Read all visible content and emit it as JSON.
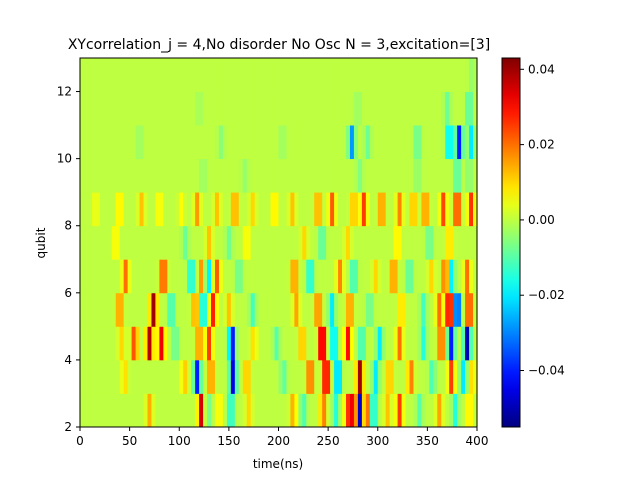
{
  "chart_data": {
    "type": "heatmap",
    "title": "XYcorrelation_j = 4,No disorder No Osc N =  3,excitation=[3]",
    "xlabel": "time(ns)",
    "ylabel": "qubit",
    "xlim": [
      0,
      400
    ],
    "ylim": [
      2,
      13
    ],
    "x_ticks": [
      0,
      50,
      100,
      150,
      200,
      250,
      300,
      350,
      400
    ],
    "y_ticks": [
      2,
      4,
      6,
      8,
      10,
      12
    ],
    "colorbar": {
      "colormap": "jet",
      "range": [
        -0.055,
        0.043
      ],
      "ticks": [
        0.04,
        0.02,
        0.0,
        -0.02,
        -0.04
      ],
      "tick_labels": [
        "0.04",
        "0.02",
        "0.00",
        "−0.02",
        "−0.04"
      ]
    },
    "x_step": 4,
    "rows": [
      {
        "qubit": 2,
        "events": [
          [
            70,
            0.014
          ],
          [
            122,
            0.035
          ],
          [
            128,
            -0.01
          ],
          [
            140,
            0.008
          ],
          [
            152,
            -0.018
          ],
          [
            170,
            0.01
          ],
          [
            215,
            0.015
          ],
          [
            225,
            -0.012
          ],
          [
            245,
            0.02
          ],
          [
            258,
            -0.015
          ],
          [
            270,
            0.025
          ],
          [
            276,
            0.04
          ],
          [
            282,
            -0.05
          ],
          [
            288,
            0.03
          ],
          [
            296,
            -0.02
          ],
          [
            310,
            0.012
          ],
          [
            322,
            0.025
          ],
          [
            342,
            -0.01
          ],
          [
            362,
            0.015
          ],
          [
            378,
            -0.015
          ],
          [
            392,
            0.01
          ]
        ]
      },
      {
        "qubit": 3,
        "events": [
          [
            45,
            0.01
          ],
          [
            105,
            0.012
          ],
          [
            118,
            -0.04
          ],
          [
            132,
            0.02
          ],
          [
            154,
            -0.045
          ],
          [
            168,
            0.015
          ],
          [
            205,
            -0.01
          ],
          [
            232,
            0.025
          ],
          [
            248,
            0.04
          ],
          [
            260,
            -0.03
          ],
          [
            282,
            0.04
          ],
          [
            298,
            -0.02
          ],
          [
            312,
            0.015
          ],
          [
            333,
            0.02
          ],
          [
            355,
            -0.012
          ],
          [
            374,
            0.025
          ],
          [
            386,
            -0.02
          ],
          [
            395,
            0.01
          ]
        ]
      },
      {
        "qubit": 4,
        "events": [
          [
            42,
            0.01
          ],
          [
            55,
            0.025
          ],
          [
            70,
            0.038
          ],
          [
            82,
            0.032
          ],
          [
            96,
            -0.01
          ],
          [
            120,
            0.02
          ],
          [
            130,
            0.025
          ],
          [
            153,
            -0.045
          ],
          [
            175,
            0.01
          ],
          [
            198,
            -0.01
          ],
          [
            224,
            0.015
          ],
          [
            244,
            0.045
          ],
          [
            256,
            -0.025
          ],
          [
            270,
            0.03
          ],
          [
            284,
            -0.015
          ],
          [
            302,
            -0.02
          ],
          [
            322,
            0.02
          ],
          [
            346,
            -0.015
          ],
          [
            364,
            0.025
          ],
          [
            374,
            -0.04
          ],
          [
            390,
            -0.05
          ]
        ]
      },
      {
        "qubit": 5,
        "events": [
          [
            40,
            0.02
          ],
          [
            74,
            0.04
          ],
          [
            92,
            -0.015
          ],
          [
            116,
            0.018
          ],
          [
            124,
            -0.022
          ],
          [
            134,
            0.028
          ],
          [
            150,
            0.012
          ],
          [
            174,
            -0.012
          ],
          [
            218,
            0.015
          ],
          [
            240,
            0.022
          ],
          [
            254,
            -0.02
          ],
          [
            272,
            0.02
          ],
          [
            292,
            -0.01
          ],
          [
            324,
            0.012
          ],
          [
            346,
            -0.012
          ],
          [
            362,
            0.02
          ],
          [
            372,
            0.04
          ],
          [
            380,
            -0.045
          ],
          [
            392,
            0.03
          ]
        ]
      },
      {
        "qubit": 6,
        "events": [
          [
            46,
            0.02
          ],
          [
            84,
            0.028
          ],
          [
            112,
            -0.02
          ],
          [
            124,
            0.025
          ],
          [
            128,
            -0.03
          ],
          [
            138,
            0.022
          ],
          [
            160,
            -0.01
          ],
          [
            216,
            0.02
          ],
          [
            232,
            -0.02
          ],
          [
            262,
            0.018
          ],
          [
            276,
            -0.015
          ],
          [
            298,
            0.01
          ],
          [
            316,
            0.02
          ],
          [
            332,
            -0.012
          ],
          [
            354,
            0.01
          ],
          [
            368,
            0.025
          ],
          [
            374,
            -0.02
          ],
          [
            390,
            0.02
          ]
        ]
      },
      {
        "qubit": 7,
        "events": [
          [
            36,
            0.008
          ],
          [
            106,
            -0.008
          ],
          [
            130,
            0.012
          ],
          [
            150,
            -0.008
          ],
          [
            168,
            0.008
          ],
          [
            226,
            0.01
          ],
          [
            244,
            -0.012
          ],
          [
            270,
            0.01
          ],
          [
            320,
            0.01
          ],
          [
            352,
            -0.01
          ],
          [
            372,
            0.012
          ]
        ]
      },
      {
        "qubit": 8,
        "events": [
          [
            16,
            0.006
          ],
          [
            40,
            0.01
          ],
          [
            62,
            0.012
          ],
          [
            80,
            0.008
          ],
          [
            102,
            0.006
          ],
          [
            118,
            0.016
          ],
          [
            138,
            0.012
          ],
          [
            156,
            0.018
          ],
          [
            174,
            0.01
          ],
          [
            196,
            0.01
          ],
          [
            214,
            0.012
          ],
          [
            240,
            0.018
          ],
          [
            254,
            0.022
          ],
          [
            276,
            0.015
          ],
          [
            286,
            0.025
          ],
          [
            304,
            0.02
          ],
          [
            322,
            0.018
          ],
          [
            336,
            0.015
          ],
          [
            348,
            0.02
          ],
          [
            366,
            0.024
          ],
          [
            380,
            0.03
          ],
          [
            394,
            0.026
          ]
        ]
      },
      {
        "qubit": 9,
        "events": [
          [
            124,
            -0.004
          ],
          [
            166,
            -0.004
          ],
          [
            282,
            -0.006
          ],
          [
            340,
            -0.005
          ],
          [
            380,
            -0.012
          ],
          [
            392,
            -0.006
          ]
        ]
      },
      {
        "qubit": 10,
        "events": [
          [
            60,
            -0.004
          ],
          [
            142,
            -0.005
          ],
          [
            204,
            -0.004
          ],
          [
            274,
            -0.028
          ],
          [
            290,
            -0.008
          ],
          [
            340,
            -0.01
          ],
          [
            372,
            -0.025
          ],
          [
            382,
            -0.04
          ],
          [
            394,
            -0.02
          ]
        ]
      },
      {
        "qubit": 11,
        "events": [
          [
            120,
            -0.003
          ],
          [
            280,
            -0.004
          ],
          [
            370,
            -0.008
          ],
          [
            392,
            -0.012
          ]
        ]
      },
      {
        "qubit": 12,
        "events": [
          [
            395,
            -0.004
          ]
        ]
      }
    ],
    "baseline_value": 0.0
  }
}
